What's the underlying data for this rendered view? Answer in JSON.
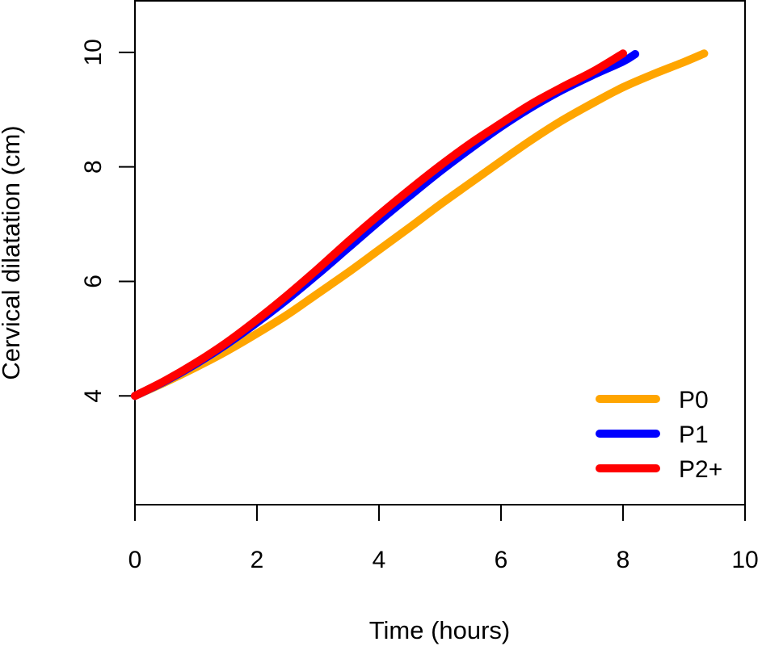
{
  "chart_data": {
    "type": "line",
    "title": "",
    "xlabel": "Time (hours)",
    "ylabel": "Cervical dilatation (cm)",
    "xlim": [
      0,
      10
    ],
    "ylim": [
      2.1,
      10.9
    ],
    "xticks": [
      0,
      2,
      4,
      6,
      8,
      10
    ],
    "yticks": [
      4,
      6,
      8,
      10
    ],
    "xtick_labels": [
      "0",
      "2",
      "4",
      "6",
      "8",
      "10"
    ],
    "ytick_labels": [
      "4",
      "6",
      "8",
      "10"
    ],
    "grid": false,
    "legend_position": "bottom-right",
    "series": [
      {
        "name": "P0",
        "color": "#FFA500",
        "x": [
          0,
          0.5,
          1,
          1.5,
          2,
          2.5,
          3,
          3.5,
          4,
          4.5,
          5,
          5.5,
          6,
          6.5,
          7,
          7.5,
          8,
          8.5,
          9,
          9.33
        ],
        "y": [
          4.0,
          4.24,
          4.5,
          4.78,
          5.09,
          5.42,
          5.79,
          6.16,
          6.55,
          6.94,
          7.34,
          7.72,
          8.1,
          8.47,
          8.81,
          9.11,
          9.39,
          9.62,
          9.83,
          9.98
        ]
      },
      {
        "name": "P1",
        "color": "#0000FF",
        "x": [
          0,
          0.5,
          1,
          1.5,
          2,
          2.5,
          3,
          3.5,
          4,
          4.5,
          5,
          5.5,
          6,
          6.5,
          7,
          7.5,
          8,
          8.2
        ],
        "y": [
          4.0,
          4.26,
          4.56,
          4.9,
          5.28,
          5.69,
          6.13,
          6.59,
          7.05,
          7.49,
          7.92,
          8.32,
          8.7,
          9.04,
          9.34,
          9.6,
          9.84,
          9.97
        ]
      },
      {
        "name": "P2+",
        "color": "#FF0000",
        "x": [
          0,
          0.5,
          1,
          1.5,
          2,
          2.5,
          3,
          3.5,
          4,
          4.5,
          5,
          5.5,
          6,
          6.5,
          7,
          7.5,
          8
        ],
        "y": [
          4.0,
          4.27,
          4.58,
          4.93,
          5.33,
          5.76,
          6.22,
          6.7,
          7.16,
          7.6,
          8.02,
          8.41,
          8.76,
          9.1,
          9.39,
          9.66,
          9.98
        ]
      }
    ]
  }
}
